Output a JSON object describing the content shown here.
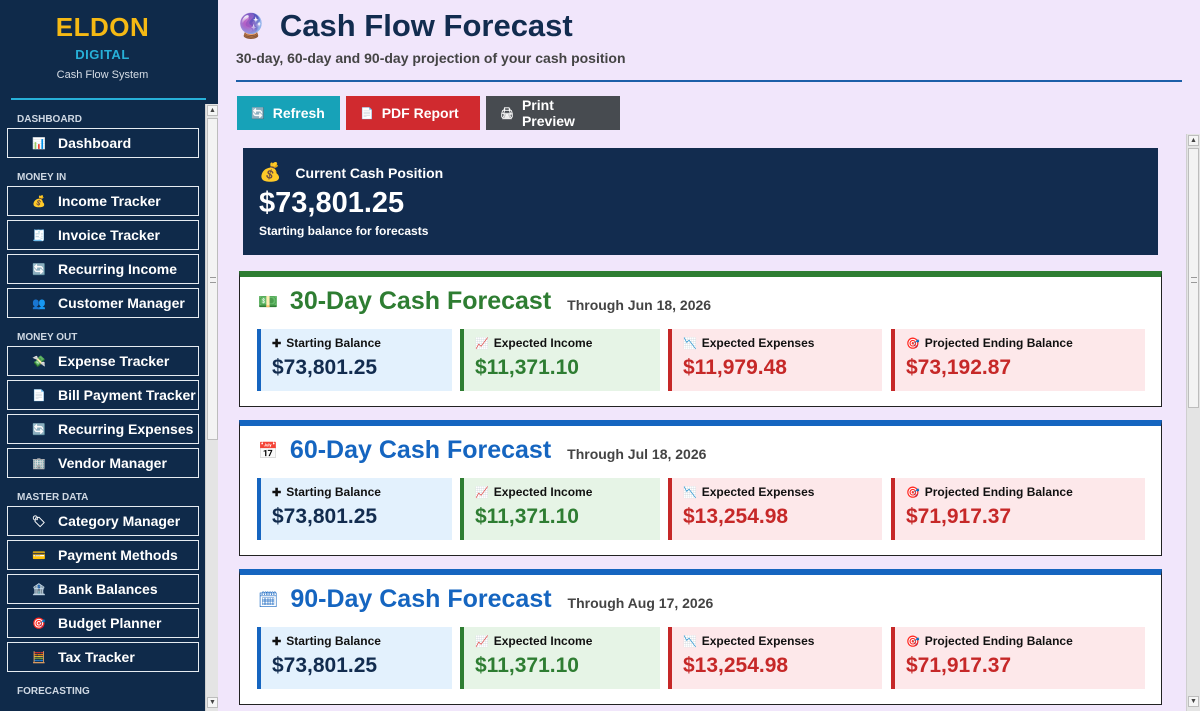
{
  "brand": {
    "name": "ELDON",
    "sub": "DIGITAL",
    "tagline": "Cash Flow System"
  },
  "sidebar": {
    "sections": [
      {
        "label": "DASHBOARD",
        "items": [
          {
            "label": "Dashboard",
            "icon": "📊"
          }
        ]
      },
      {
        "label": "MONEY IN",
        "items": [
          {
            "label": "Income Tracker",
            "icon": "💰"
          },
          {
            "label": "Invoice Tracker",
            "icon": "🧾"
          },
          {
            "label": "Recurring Income",
            "icon": "🔄"
          },
          {
            "label": "Customer Manager",
            "icon": "👥"
          }
        ]
      },
      {
        "label": "MONEY OUT",
        "items": [
          {
            "label": "Expense Tracker",
            "icon": "💸"
          },
          {
            "label": "Bill Payment Tracker",
            "icon": "📄"
          },
          {
            "label": "Recurring Expenses",
            "icon": "🔄"
          },
          {
            "label": "Vendor Manager",
            "icon": "🏢"
          }
        ]
      },
      {
        "label": "MASTER DATA",
        "items": [
          {
            "label": "Category Manager",
            "icon": "🏷"
          },
          {
            "label": "Payment Methods",
            "icon": "💳"
          },
          {
            "label": "Bank Balances",
            "icon": "🏦"
          },
          {
            "label": "Budget Planner",
            "icon": "🎯"
          },
          {
            "label": "Tax Tracker",
            "icon": "🧮"
          }
        ]
      },
      {
        "label": "FORECASTING",
        "items": []
      }
    ]
  },
  "header": {
    "title": "Cash Flow Forecast",
    "title_icon": "🔮",
    "subtitle": "30-day, 60-day and 90-day projection of your cash position"
  },
  "toolbar": {
    "refresh_label": "Refresh",
    "pdf_label": "PDF Report",
    "print_label": "Print Preview"
  },
  "cash": {
    "heading": "Current Cash Position",
    "amount": "$73,801.25",
    "note": "Starting balance for forecasts"
  },
  "metric_labels": {
    "start": "Starting Balance",
    "income": "Expected Income",
    "expenses": "Expected Expenses",
    "ending": "Projected Ending Balance"
  },
  "forecasts": [
    {
      "title": "30-Day Cash Forecast",
      "date": "Through Jun 18, 2026",
      "icon": "💵",
      "start": "$73,801.25",
      "income": "$11,371.10",
      "expenses": "$11,979.48",
      "ending": "$73,192.87"
    },
    {
      "title": "60-Day Cash Forecast",
      "date": "Through Jul 18, 2026",
      "icon": "📅",
      "start": "$73,801.25",
      "income": "$11,371.10",
      "expenses": "$13,254.98",
      "ending": "$71,917.37"
    },
    {
      "title": "90-Day Cash Forecast",
      "date": "Through Aug 17, 2026",
      "icon": "🗓",
      "start": "$73,801.25",
      "income": "$11,371.10",
      "expenses": "$13,254.98",
      "ending": "$71,917.37"
    }
  ]
}
